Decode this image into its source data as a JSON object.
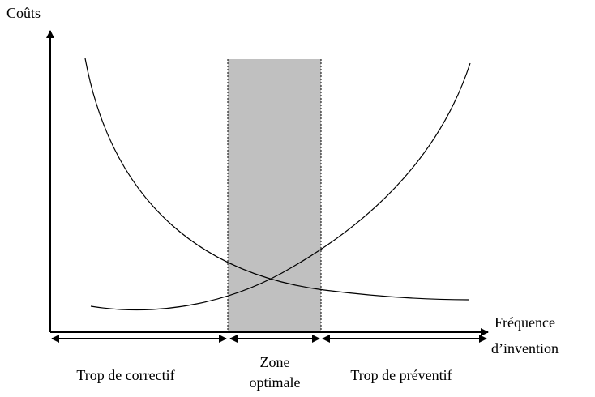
{
  "y_axis": {
    "label": "Coûts"
  },
  "x_axis": {
    "label_lines": [
      "Fréquence",
      "d’invention"
    ]
  },
  "zones": [
    {
      "label_lines": [
        "Trop de correctif"
      ]
    },
    {
      "label_lines": [
        "Zone",
        "optimale"
      ]
    },
    {
      "label_lines": [
        "Trop de préventif"
      ]
    }
  ]
}
